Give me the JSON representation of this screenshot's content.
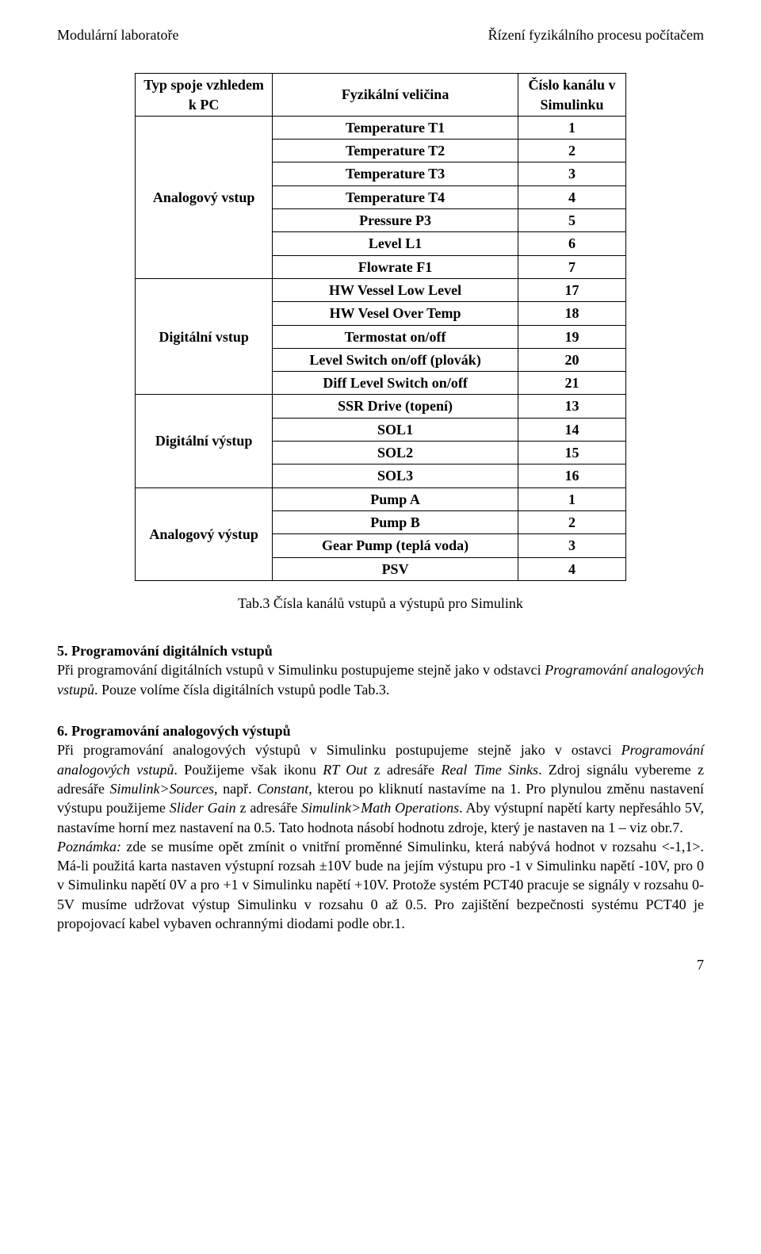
{
  "header": {
    "left": "Modulární laboratoře",
    "right": "Řízení fyzikálního procesu počítačem"
  },
  "table": {
    "head": {
      "c0": "Typ spoje vzhledem k PC",
      "c1": "Fyzikální veličina",
      "c2": "Číslo kanálu v Simulinku"
    },
    "groups": [
      {
        "label": "Analogový vstup",
        "rows": [
          {
            "name": "Temperature T1",
            "num": "1"
          },
          {
            "name": "Temperature T2",
            "num": "2"
          },
          {
            "name": "Temperature T3",
            "num": "3"
          },
          {
            "name": "Temperature T4",
            "num": "4"
          },
          {
            "name": "Pressure P3",
            "num": "5"
          },
          {
            "name": "Level L1",
            "num": "6"
          },
          {
            "name": "Flowrate F1",
            "num": "7"
          }
        ]
      },
      {
        "label": "Digitální vstup",
        "rows": [
          {
            "name": "HW Vessel Low Level",
            "num": "17"
          },
          {
            "name": "HW Vesel Over Temp",
            "num": "18"
          },
          {
            "name": "Termostat on/off",
            "num": "19"
          },
          {
            "name": "Level Switch on/off (plovák)",
            "num": "20"
          },
          {
            "name": "Diff Level Switch on/off",
            "num": "21"
          }
        ]
      },
      {
        "label": "Digitální výstup",
        "rows": [
          {
            "name": "SSR Drive (topení)",
            "num": "13"
          },
          {
            "name": "SOL1",
            "num": "14"
          },
          {
            "name": "SOL2",
            "num": "15"
          },
          {
            "name": "SOL3",
            "num": "16"
          }
        ]
      },
      {
        "label": "Analogový výstup",
        "rows": [
          {
            "name": "Pump A",
            "num": "1"
          },
          {
            "name": "Pump B",
            "num": "2"
          },
          {
            "name": "Gear Pump (teplá voda)",
            "num": "3"
          },
          {
            "name": "PSV",
            "num": "4"
          }
        ]
      }
    ],
    "caption": "Tab.3 Čísla kanálů vstupů a výstupů pro Simulink"
  },
  "section5": {
    "title": "5. Programování digitálních vstupů",
    "t1": "Při programování digitálních vstupů v Simulinku postupujeme stejně jako v odstavci ",
    "i1": "Programování analogových vstupů",
    "t2": ". Pouze volíme čísla digitálních vstupů podle Tab.3."
  },
  "section6": {
    "title": "6. Programování analogových výstupů",
    "t1": "Při programování analogových výstupů v Simulinku postupujeme stejně jako v ostavci ",
    "i1": "Programování analogových vstupů",
    "t2": ". Použijeme však ikonu ",
    "i2": "RT Out",
    "t3": " z adresáře ",
    "i3": "Real Time Sinks",
    "t4": ". Zdroj signálu vybereme z adresáře ",
    "i4": "Simulink>Sources",
    "t5": ", např. ",
    "i5": "Constant",
    "t6": ", kterou po kliknutí nastavíme na 1. Pro plynulou změnu nastavení výstupu použijeme ",
    "i6": "Slider Gain",
    "t7": " z adresáře ",
    "i7": "Simulink>Math Operations",
    "t8": ". Aby výstupní napětí karty nepřesáhlo 5V, nastavíme horní mez nastavení na 0.5. Tato hodnota násobí hodnotu zdroje, který je nastaven na 1 – viz obr.7.",
    "noteLabel": "Poznámka:",
    "noteText": " zde se musíme opět zmínit o vnitřní proměnné Simulinku, která nabývá hodnot v rozsahu <-1,1>. Má-li použitá karta nastaven výstupní rozsah ±10V bude na jejím výstupu pro -1 v Simulinku napětí -10V, pro 0 v Simulinku napětí 0V a pro +1 v Simulinku napětí +10V. Protože systém PCT40 pracuje se signály v rozsahu 0-5V musíme udržovat výstup Simulinku v rozsahu 0 až 0.5. Pro zajištění bezpečnosti systému PCT40 je propojovací kabel vybaven ochrannými diodami podle obr.1."
  },
  "pageNumber": "7"
}
